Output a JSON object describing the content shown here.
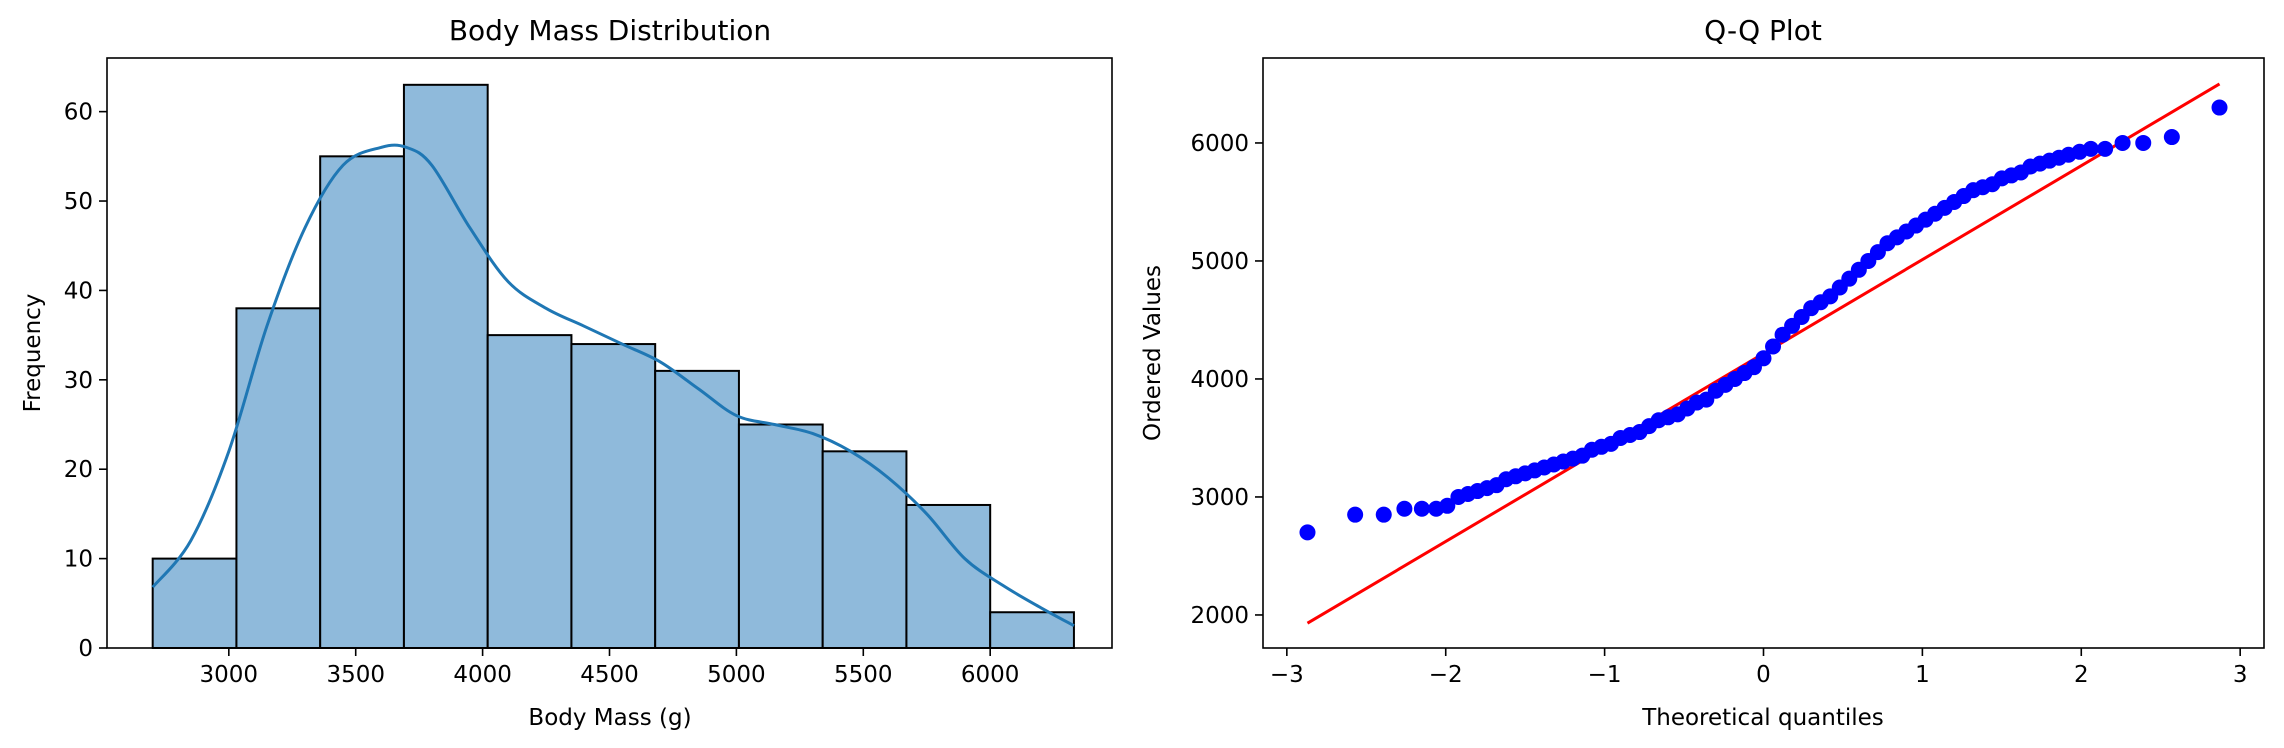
{
  "colors": {
    "hist_fill": "#8fbadb",
    "hist_edge": "#000000",
    "kde_line": "#1f77b4",
    "qq_points": "#0000ff",
    "qq_line": "#ff0000"
  },
  "chart_data": [
    {
      "type": "bar",
      "subtype": "histogram_with_kde",
      "title": "Body Mass Distribution",
      "xlabel": "Body Mass (g)",
      "ylabel": "Frequency",
      "xlim": [
        2520,
        6480
      ],
      "ylim": [
        0,
        66
      ],
      "xticks": [
        3000,
        3500,
        4000,
        4500,
        5000,
        5500,
        6000
      ],
      "yticks": [
        0,
        10,
        20,
        30,
        40,
        50,
        60
      ],
      "bin_edges": [
        2700,
        3030,
        3360,
        3690,
        4020,
        4350,
        4680,
        5010,
        5340,
        5670,
        6000,
        6330
      ],
      "counts": [
        10,
        38,
        55,
        63,
        35,
        34,
        31,
        25,
        22,
        16,
        4
      ],
      "kde": {
        "x": [
          2700,
          2850,
          3000,
          3150,
          3300,
          3450,
          3600,
          3700,
          3800,
          3950,
          4100,
          4250,
          4400,
          4550,
          4700,
          4850,
          5000,
          5150,
          5300,
          5450,
          5600,
          5750,
          5900,
          6050,
          6200,
          6330
        ],
        "y": [
          6.8,
          12,
          22,
          36,
          47,
          54,
          56,
          56,
          54,
          47,
          41,
          38,
          36,
          34,
          32,
          29,
          26,
          25,
          24,
          22,
          19,
          15,
          10,
          7,
          4.5,
          2.5
        ]
      },
      "grid": false
    },
    {
      "type": "scatter",
      "subtype": "qq_plot",
      "title": "Q-Q Plot",
      "xlabel": "Theoretical quantiles",
      "ylabel": "Ordered Values",
      "xlim": [
        -3.15,
        3.15
      ],
      "ylim": [
        1720,
        6720
      ],
      "xticks": [
        -3,
        -2,
        -1,
        0,
        1,
        2,
        3
      ],
      "yticks": [
        2000,
        3000,
        4000,
        5000,
        6000
      ],
      "fit_line": {
        "x": [
          -2.87,
          2.87
        ],
        "y": [
          1930,
          6500
        ]
      },
      "points": {
        "x": [
          -2.87,
          -2.57,
          -2.39,
          -2.26,
          -2.15,
          -2.06,
          -1.99,
          -1.92,
          -1.86,
          -1.8,
          -1.74,
          -1.68,
          -1.62,
          -1.56,
          -1.5,
          -1.44,
          -1.38,
          -1.32,
          -1.26,
          -1.2,
          -1.14,
          -1.08,
          -1.02,
          -0.96,
          -0.9,
          -0.84,
          -0.78,
          -0.72,
          -0.66,
          -0.6,
          -0.54,
          -0.48,
          -0.42,
          -0.36,
          -0.3,
          -0.24,
          -0.18,
          -0.12,
          -0.06,
          0.0,
          0.06,
          0.12,
          0.18,
          0.24,
          0.3,
          0.36,
          0.42,
          0.48,
          0.54,
          0.6,
          0.66,
          0.72,
          0.78,
          0.84,
          0.9,
          0.96,
          1.02,
          1.08,
          1.14,
          1.2,
          1.26,
          1.32,
          1.38,
          1.44,
          1.5,
          1.56,
          1.62,
          1.68,
          1.74,
          1.8,
          1.86,
          1.92,
          1.99,
          2.06,
          2.15,
          2.26,
          2.39,
          2.57,
          2.87
        ],
        "y": [
          2700,
          2850,
          2850,
          2900,
          2900,
          2900,
          2925,
          3000,
          3025,
          3050,
          3075,
          3100,
          3150,
          3175,
          3200,
          3225,
          3250,
          3275,
          3300,
          3325,
          3350,
          3400,
          3425,
          3450,
          3500,
          3525,
          3550,
          3600,
          3650,
          3675,
          3700,
          3750,
          3800,
          3825,
          3900,
          3950,
          4000,
          4050,
          4100,
          4175,
          4275,
          4375,
          4450,
          4525,
          4600,
          4650,
          4700,
          4775,
          4850,
          4925,
          5000,
          5075,
          5150,
          5200,
          5250,
          5300,
          5350,
          5400,
          5450,
          5500,
          5550,
          5600,
          5625,
          5650,
          5700,
          5725,
          5750,
          5800,
          5825,
          5850,
          5875,
          5900,
          5925,
          5950,
          5950,
          6000,
          6000,
          6050,
          6300
        ]
      },
      "grid": false
    }
  ]
}
